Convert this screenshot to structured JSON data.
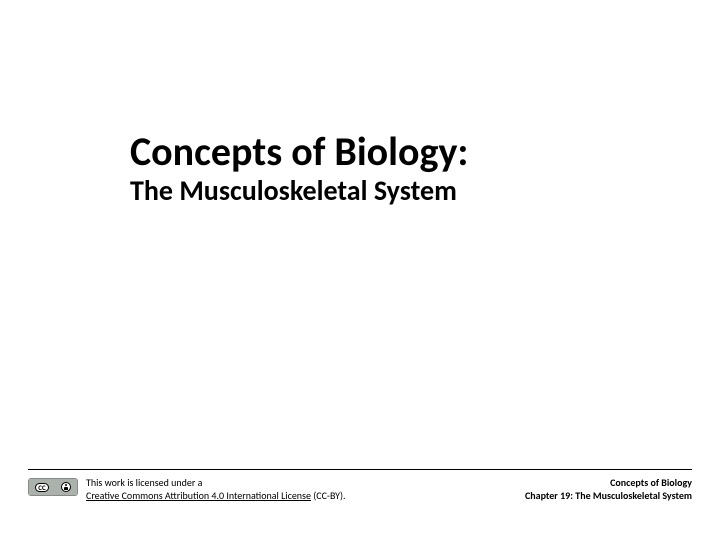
{
  "title": {
    "main": "Concepts of Biology:",
    "subtitle": "The Musculoskeletal System"
  },
  "footer": {
    "license": {
      "prefix": "This work is licensed under a",
      "link_text": "Creative Commons Attribution 4.0 International License",
      "suffix": " (CC-BY).",
      "badge_cc": "CC"
    },
    "attribution": {
      "line1": "Concepts of Biology",
      "line2": "Chapter 19: The Musculoskeletal System"
    }
  },
  "colors": {
    "text": "#000000",
    "background": "#ffffff",
    "rule": "#000000",
    "badge_bg": "#aab2ab"
  },
  "typography": {
    "title_fontsize": 40,
    "subtitle_fontsize": 28,
    "footer_fontsize": 10,
    "title_weight": 700,
    "subtitle_weight": 700
  }
}
